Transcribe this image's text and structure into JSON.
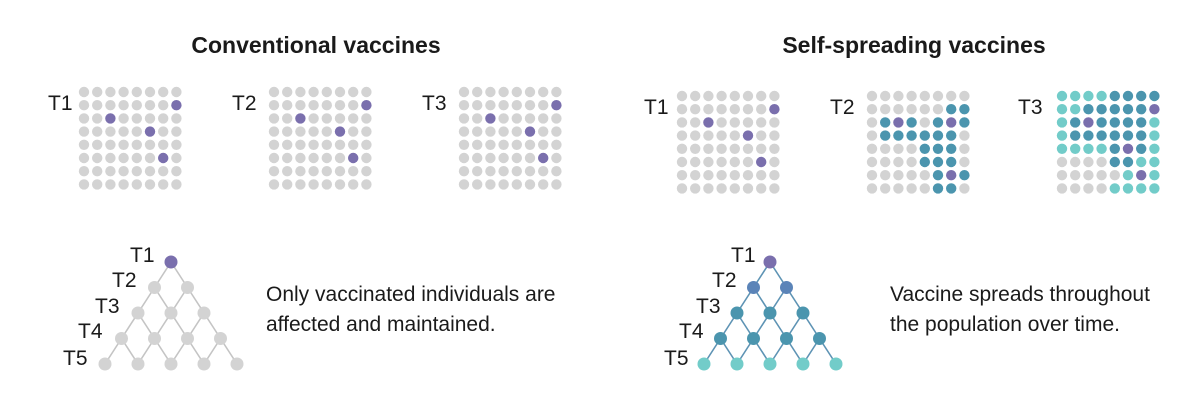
{
  "colors": {
    "unvaccinated": "#d3d3d3",
    "vaccinated": "#7a6fad",
    "spread_dark": "#4b95ae",
    "spread_light": "#72ccc9",
    "tree_line_gray": "#c4c4c4",
    "tree_line_blue": "#5d93b4"
  },
  "panels": [
    {
      "title": "Conventional vaccines",
      "caption_lines": [
        "Only vaccinated individuals are",
        "affected and maintained."
      ],
      "grids": [
        {
          "label": "T1",
          "cells": [
            "........",
            ".......P",
            "..P.....",
            ".....P..",
            "........",
            "......P.",
            "........",
            "........"
          ]
        },
        {
          "label": "T2",
          "cells": [
            "........",
            ".......P",
            "..P.....",
            ".....P..",
            "........",
            "......P.",
            "........",
            "........"
          ]
        },
        {
          "label": "T3",
          "cells": [
            "........",
            ".......P",
            "..P.....",
            ".....P..",
            "........",
            "......P.",
            "........",
            "........"
          ]
        }
      ],
      "tree": {
        "labels": [
          "T1",
          "T2",
          "T3",
          "T4",
          "T5"
        ],
        "first_row_state": "P",
        "other_rows_state": "."
      }
    },
    {
      "title": "Self-spreading vaccines",
      "caption_lines": [
        "Vaccine spreads throughout",
        "the population over time."
      ],
      "grids": [
        {
          "label": "T1",
          "cells": [
            "........",
            ".......P",
            "..P.....",
            ".....P..",
            "........",
            "......P.",
            "........",
            "........"
          ]
        },
        {
          "label": "T2",
          "cells": [
            "........",
            "......DD",
            ".DPD.DPD",
            ".DDDDDD.",
            "....DDD.",
            "....DDD.",
            ".....DPD",
            ".....DD."
          ]
        },
        {
          "label": "T3",
          "cells": [
            "LLLLDDDD",
            "LLDDDDDP",
            "LDPDDDDL",
            "LDDDDDDL",
            "LLLLDPDL",
            "....DDLL",
            ".....LPL",
            "....LLLL"
          ]
        }
      ],
      "tree": {
        "labels": [
          "T1",
          "T2",
          "T3",
          "T4",
          "T5"
        ],
        "first_row_state": "P",
        "row_states": [
          "P",
          "B",
          "D",
          "D",
          "L"
        ]
      }
    }
  ]
}
